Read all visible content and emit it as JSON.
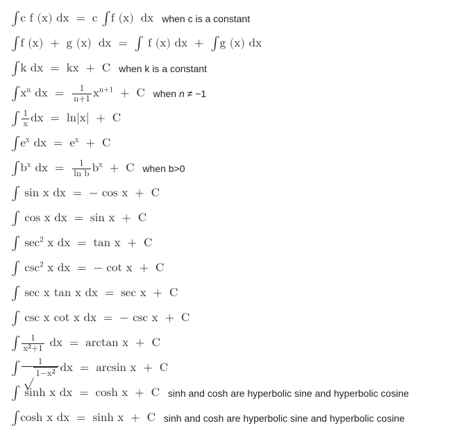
{
  "text_color": "#222222",
  "background_color": "#ffffff",
  "math_font": "Cambria Math, Latin Modern Math, STIX Two Math, Times New Roman, serif",
  "cond_font": "Arial, Helvetica, sans-serif",
  "rules": [
    {
      "lhs": "∫ c f(x) dx",
      "rhs": "c ∫ f(x) dx",
      "cond": "when c is a constant"
    },
    {
      "lhs": "∫ f(x) + g(x) dx",
      "rhs": "∫ f(x) dx + ∫ g(x) dx",
      "cond": ""
    },
    {
      "lhs": "∫ k dx",
      "rhs": "kx + C",
      "cond": "when k is a constant"
    },
    {
      "lhs": "∫ xⁿ dx",
      "rhs_frac_num": "1",
      "rhs_frac_den": "n+1",
      "rhs_rest": "xⁿ⁺¹ + C",
      "cond": "when n ≠ −1"
    },
    {
      "lhs_int": "∫",
      "lhs_frac_num": "1",
      "lhs_frac_den": "x",
      "lhs_rest": "dx",
      "rhs": "ln|x| + C",
      "cond": ""
    },
    {
      "lhs": "∫ eˣ dx",
      "rhs": "eˣ + C",
      "cond": ""
    },
    {
      "lhs": "∫ bˣ dx",
      "rhs_frac_num": "1",
      "rhs_frac_den": "ln b",
      "rhs_rest": "bˣ + C",
      "cond": "when b>0"
    },
    {
      "lhs": "∫ sin x dx",
      "rhs": "− cos x + C",
      "cond": ""
    },
    {
      "lhs": "∫ cos x dx",
      "rhs": "sin x + C",
      "cond": ""
    },
    {
      "lhs": "∫ sec² x dx",
      "rhs": "tan x + C",
      "cond": ""
    },
    {
      "lhs": "∫ csc² x dx",
      "rhs": "− cot x + C",
      "cond": ""
    },
    {
      "lhs": "∫ sec x tan x dx",
      "rhs": "sec x + C",
      "cond": ""
    },
    {
      "lhs": "∫ csc x cot x dx",
      "rhs": "− csc x + C",
      "cond": ""
    },
    {
      "lhs_int": "∫",
      "lhs_frac_num": "1",
      "lhs_frac_den": "x²+1",
      "lhs_rest": "dx",
      "rhs": "arctan x + C",
      "cond": ""
    },
    {
      "lhs_int": "∫",
      "lhs_frac_num": "1",
      "lhs_sqrt_arg": "1−x²",
      "lhs_rest": "dx",
      "rhs": "arcsin x + C",
      "cond": ""
    },
    {
      "lhs": "∫ sinh x dx",
      "rhs": "cosh x + C",
      "cond": "sinh and cosh are hyperbolic sine and hyperbolic cosine"
    },
    {
      "lhs": "∫ cosh x dx",
      "rhs": "sinh x + C",
      "cond": "sinh and cosh are hyperbolic sine and hyperbolic cosine"
    }
  ],
  "eq": " = "
}
